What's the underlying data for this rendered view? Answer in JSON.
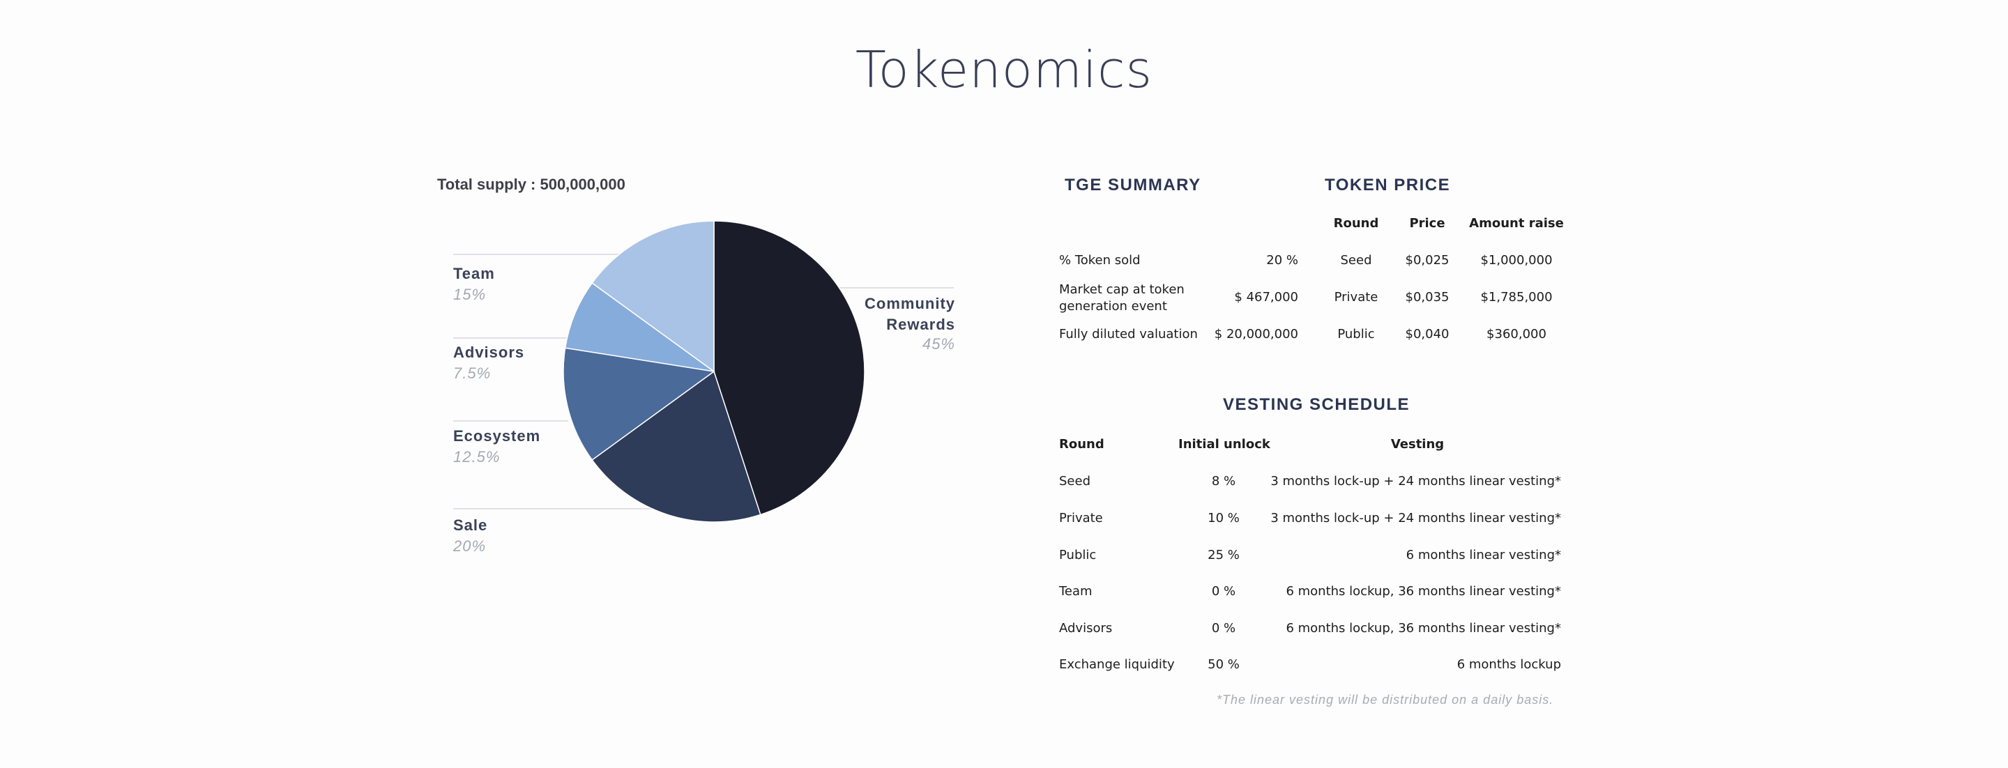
{
  "page": {
    "title": "Tokenomics"
  },
  "chart_data": {
    "type": "pie",
    "title": "",
    "total_supply_label": "Total supply : 500,000,000",
    "slices": [
      {
        "name": "Community Rewards",
        "value": 45,
        "label": "45%",
        "color": "#1b1c29"
      },
      {
        "name": "Sale",
        "value": 20,
        "label": "20%",
        "color": "#2e3b59"
      },
      {
        "name": "Ecosystem",
        "value": 12.5,
        "label": "12.5%",
        "color": "#4a6a99"
      },
      {
        "name": "Advisors",
        "value": 7.5,
        "label": "7.5%",
        "color": "#86acdb"
      },
      {
        "name": "Team",
        "value": 15,
        "label": "15%",
        "color": "#a9c3e6"
      }
    ],
    "legend": [
      {
        "name": "Team",
        "pct": "15%"
      },
      {
        "name": "Advisors",
        "pct": "7.5%"
      },
      {
        "name": "Ecosystem",
        "pct": "12.5%"
      },
      {
        "name": "Sale",
        "pct": "20%"
      },
      {
        "name": "Community",
        "name2": "Rewards",
        "pct": "45%"
      }
    ]
  },
  "tge_summary": {
    "heading": "TGE SUMMARY",
    "rows": [
      {
        "label": "% Token sold",
        "value": "20 %"
      },
      {
        "label": "Market cap at token",
        "label2": "generation event",
        "value": "$ 467,000"
      },
      {
        "label": "Fully diluted valuation",
        "value": "$ 20,000,000"
      }
    ]
  },
  "token_price": {
    "heading": "TOKEN PRICE",
    "headers": [
      "Round",
      "Price",
      "Amount raise"
    ],
    "rows": [
      [
        "Seed",
        "$0,025",
        "$1,000,000"
      ],
      [
        "Private",
        "$0,035",
        "$1,785,000"
      ],
      [
        "Public",
        "$0,040",
        "$360,000"
      ]
    ]
  },
  "vesting": {
    "heading": "VESTING SCHEDULE",
    "headers": [
      "Round",
      "Initial unlock",
      "Vesting"
    ],
    "rows": [
      [
        "Seed",
        "8 %",
        "3 months lock-up + 24 months linear vesting*"
      ],
      [
        "Private",
        "10 %",
        "3 months lock-up + 24 months linear vesting*"
      ],
      [
        "Public",
        "25 %",
        "6 months linear vesting*"
      ],
      [
        "Team",
        "0 %",
        "6 months lockup, 36 months linear vesting*"
      ],
      [
        "Advisors",
        "0 %",
        "6 months lockup, 36 months linear vesting*"
      ],
      [
        "Exchange liquidity",
        "50 %",
        "6 months lockup"
      ]
    ],
    "note": "*The linear vesting will be distributed on a daily basis."
  }
}
